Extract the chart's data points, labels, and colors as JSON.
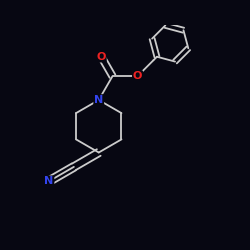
{
  "background_color": "#070712",
  "bond_color": "#cccccc",
  "N_color": "#3344ee",
  "O_color": "#ee2222",
  "font_size": 8.0,
  "line_width": 1.3,
  "figsize": [
    2.5,
    2.5
  ],
  "dpi": 100,
  "xlim": [
    0.0,
    1.0
  ],
  "ylim": [
    0.1,
    0.9
  ]
}
